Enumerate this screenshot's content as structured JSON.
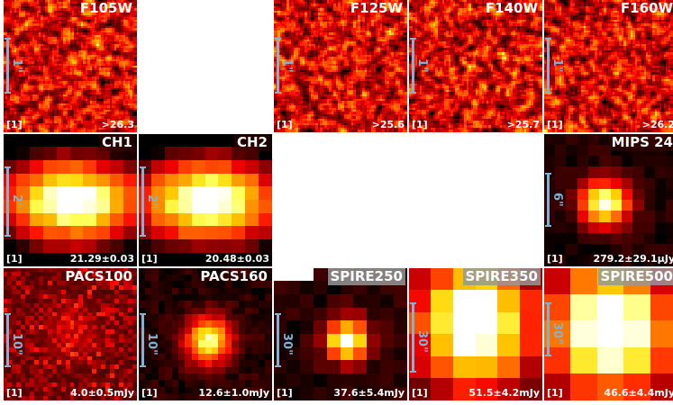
{
  "panels": [
    {
      "band": "F105W",
      "ref": "[1]",
      "value": ">26.3",
      "scale": "1\"",
      "style": "noise"
    },
    {
      "blank": true
    },
    {
      "band": "F125W",
      "ref": "[1]",
      "value": ">25.6",
      "scale": "1\"",
      "style": "noise"
    },
    {
      "band": "F140W",
      "ref": "[1]",
      "value": ">25.7",
      "scale": "1\"",
      "style": "noise"
    },
    {
      "band": "F160W",
      "ref": "[1]",
      "value": ">26.2",
      "scale": "1\"",
      "style": "noise"
    },
    {
      "band": "CH1",
      "ref": "[1]",
      "value": "21.29±0.03",
      "scale": "2\"",
      "style": "bright"
    },
    {
      "band": "CH2",
      "ref": "[1]",
      "value": "20.48±0.03",
      "scale": "2\"",
      "style": "bright"
    },
    {
      "blank": true
    },
    {
      "band": "MIPS 24",
      "ref": "[1]",
      "value": "279.2±29.1μJy",
      "scale": "6\"",
      "style": "blob"
    },
    {
      "band": "PACS100",
      "ref": "[1]",
      "value": "4.0±0.5mJy",
      "scale": "10\"",
      "style": "faint"
    },
    {
      "band": "PACS160",
      "ref": "[1]",
      "value": "12.6±1.0mJy",
      "scale": "10\"",
      "style": "gauss"
    },
    {
      "band": "SPIRE250",
      "ref": "[1]",
      "value": "37.6±5.4mJy",
      "scale": "30\"",
      "style": "spire250"
    },
    {
      "band": "SPIRE350",
      "ref": "[1]",
      "value": "51.5±4.2mJy",
      "scale": "30\"",
      "style": "spire350"
    },
    {
      "band": "SPIRE500",
      "ref": "[1]",
      "value": "46.6±4.4mJy",
      "scale": "30\"",
      "style": "spire500"
    }
  ]
}
